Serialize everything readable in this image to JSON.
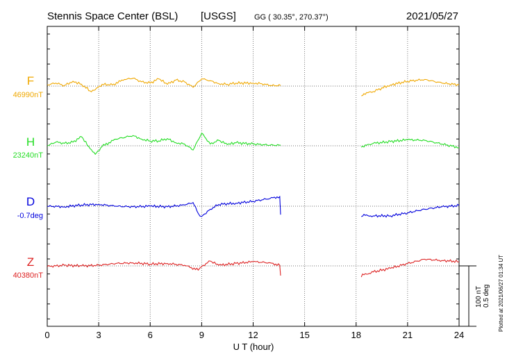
{
  "header": {
    "station": "Stennis Space Center (BSL)",
    "agency": "[USGS]",
    "coords": "GG ( 30.35°, 270.37°)",
    "date": "2021/05/27"
  },
  "footnote": "Plotted at 2021/06/27 01:34 UT",
  "scale_bar": {
    "nt_label": "100 nT",
    "deg_label": "0.5 deg"
  },
  "chart_data": {
    "type": "line",
    "title": "Stennis Space Center (BSL) [USGS]",
    "xlabel": "U T (hour)",
    "xlim": [
      0,
      24
    ],
    "xticks": [
      0,
      3,
      6,
      9,
      12,
      15,
      18,
      21,
      24
    ],
    "grid": true,
    "scale": {
      "nT_per_bar": 100,
      "deg_per_bar": 0.5
    },
    "series": [
      {
        "name": "F",
        "baseline_label": "46990nT",
        "color": "#f0a800",
        "points": [
          [
            0,
            -2
          ],
          [
            0.5,
            -5
          ],
          [
            1,
            -1
          ],
          [
            1.5,
            -8
          ],
          [
            2,
            -3
          ],
          [
            2.5,
            8
          ],
          [
            2.8,
            6
          ],
          [
            3.2,
            -3
          ],
          [
            3.8,
            -2
          ],
          [
            4.5,
            -11
          ],
          [
            5,
            -13
          ],
          [
            5.5,
            -7
          ],
          [
            6,
            -5
          ],
          [
            6.5,
            -12
          ],
          [
            7,
            -3
          ],
          [
            7.5,
            -10
          ],
          [
            8,
            -7
          ],
          [
            8.5,
            2
          ],
          [
            9,
            -12
          ],
          [
            9.5,
            -9
          ],
          [
            10,
            -4
          ],
          [
            10.5,
            -3
          ],
          [
            11,
            -5
          ],
          [
            12,
            -5
          ],
          [
            12.5,
            -4
          ],
          [
            13,
            -1
          ],
          [
            13.6,
            -1
          ],
          [
            null,
            null
          ],
          [
            18.3,
            14
          ],
          [
            19,
            9
          ],
          [
            20,
            -2
          ],
          [
            21,
            -8
          ],
          [
            22,
            -11
          ],
          [
            23,
            -5
          ],
          [
            24,
            -2
          ]
        ]
      },
      {
        "name": "H",
        "baseline_label": "23240nT",
        "color": "#22dd22",
        "points": [
          [
            0,
            0
          ],
          [
            0.5,
            -6
          ],
          [
            1,
            -4
          ],
          [
            1.5,
            -6
          ],
          [
            2,
            -15
          ],
          [
            2.5,
            5
          ],
          [
            2.8,
            14
          ],
          [
            3.2,
            1
          ],
          [
            4,
            -11
          ],
          [
            5,
            -17
          ],
          [
            5.5,
            -11
          ],
          [
            6,
            -8
          ],
          [
            6.5,
            -8
          ],
          [
            7,
            -12
          ],
          [
            7.5,
            -5
          ],
          [
            8,
            -3
          ],
          [
            8.5,
            7
          ],
          [
            9,
            -21
          ],
          [
            9.5,
            -3
          ],
          [
            10,
            -9
          ],
          [
            10.5,
            -2
          ],
          [
            11,
            -5
          ],
          [
            12,
            -3
          ],
          [
            13,
            -1
          ],
          [
            13.6,
            -1
          ],
          [
            null,
            null
          ],
          [
            18.3,
            2
          ],
          [
            19,
            -4
          ],
          [
            20,
            -7
          ],
          [
            21,
            -10
          ],
          [
            22,
            -9
          ],
          [
            23,
            -3
          ],
          [
            24,
            3
          ]
        ]
      },
      {
        "name": "D",
        "baseline_label": "-0.7deg",
        "color": "#0000dd",
        "points": [
          [
            0,
            0
          ],
          [
            1,
            1
          ],
          [
            2,
            -2
          ],
          [
            3,
            -3
          ],
          [
            4,
            0
          ],
          [
            5,
            1
          ],
          [
            6,
            0
          ],
          [
            7,
            1
          ],
          [
            8,
            -2
          ],
          [
            8.5,
            -6
          ],
          [
            8.8,
            12
          ],
          [
            9,
            17
          ],
          [
            9.5,
            5
          ],
          [
            10,
            -3
          ],
          [
            11,
            -5
          ],
          [
            12,
            -8
          ],
          [
            13,
            -13
          ],
          [
            13.55,
            -16
          ],
          [
            13.6,
            14
          ],
          [
            null,
            null
          ],
          [
            18.3,
            15
          ],
          [
            19,
            16
          ],
          [
            20,
            16
          ],
          [
            21,
            11
          ],
          [
            22,
            5
          ],
          [
            23,
            1
          ],
          [
            24,
            -1
          ]
        ]
      },
      {
        "name": "Z",
        "baseline_label": "40380nT",
        "color": "#dd2222",
        "points": [
          [
            0,
            1
          ],
          [
            1,
            -1
          ],
          [
            2,
            0
          ],
          [
            3,
            -1
          ],
          [
            4,
            -4
          ],
          [
            5,
            -5
          ],
          [
            6,
            -3
          ],
          [
            7,
            -4
          ],
          [
            8,
            -1
          ],
          [
            8.8,
            7
          ],
          [
            9,
            1
          ],
          [
            9.5,
            -8
          ],
          [
            10,
            -1
          ],
          [
            11,
            -4
          ],
          [
            12,
            -7
          ],
          [
            13,
            -5
          ],
          [
            13.55,
            -1
          ],
          [
            13.6,
            16
          ],
          [
            null,
            null
          ],
          [
            18.3,
            16
          ],
          [
            19,
            10
          ],
          [
            20,
            4
          ],
          [
            21,
            -4
          ],
          [
            22,
            -11
          ],
          [
            23,
            -9
          ],
          [
            24,
            -7
          ]
        ]
      }
    ]
  }
}
